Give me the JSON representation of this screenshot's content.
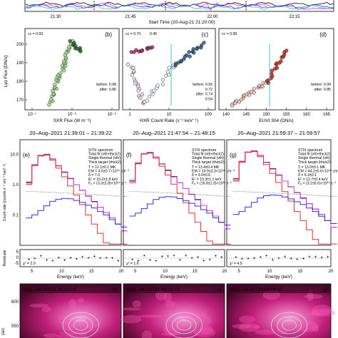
{
  "timeline": {
    "ticks": [
      "21:30",
      "21:45",
      "22:00",
      "22:15"
    ],
    "xlabel": "Start Time (20-Aug-21 21:20:00)"
  },
  "top_row": [
    {
      "id": "b",
      "cc": "cc = 0.93",
      "cc_color": "#2a8a2a",
      "xlabel": "SXR Flux (W m⁻²)",
      "xticks": [
        "10⁻⁷",
        "10⁻⁶",
        "10⁻⁵"
      ],
      "yticks": [
        "200",
        "190",
        "180",
        "170"
      ],
      "stats": [
        {
          "t": "before: 0.98",
          "c": "#2a8a2a"
        },
        {
          "t": "after: 0.86",
          "c": "#2a8a2a"
        }
      ]
    },
    {
      "id": "c",
      "cc": "cc = 0.70",
      "cc_color": "#3a6fb0",
      "cc2": "0.45",
      "cc2_color": "#b03aa0",
      "xlabel": "HXR Count Rate (s⁻¹ keV⁻¹)",
      "xticks": [
        "1",
        "10",
        "100"
      ],
      "stats": [
        {
          "t": "before: 0.92",
          "c": "#3a6fb0"
        },
        {
          "t": "0.72",
          "c": "#c03090"
        },
        {
          "t": "after: 0.74",
          "c": "#3a6fb0"
        },
        {
          "t": "0.54",
          "c": "#c03090"
        }
      ]
    },
    {
      "id": "d",
      "cc": "cc = 0.98",
      "cc_color": "#e03a3a",
      "xlabel": "EUVI 304 (DN/s)",
      "xticks": [
        "140",
        "145",
        "150",
        "155",
        "160",
        "165"
      ],
      "stats": [
        {
          "t": "before: 0.99",
          "c": "#e03a3a"
        },
        {
          "t": "after: 0.85",
          "c": "#e03a3a"
        }
      ]
    }
  ],
  "ylabel_top": "Lyα Flux (DN/s)",
  "spectra": [
    {
      "id": "e",
      "title": "20–Aug–2021 21:39:01 – 21:39:22",
      "chi": "χ² = 2.0",
      "fit": [
        "T = 12.1±0.1 MK",
        "EM = 4.5±0.7×10⁴⁶ cm⁻³",
        "δ = 7.0",
        "Eᶜ = 15.2±1.8 keV",
        "Fₑ = (3.3±2.8)×10³⁴ s⁻¹"
      ]
    },
    {
      "id": "f",
      "title": "20–Aug–2021 21:47:54 – 21:48:15",
      "chi": "χ² = 1.6",
      "fit": [
        "T = 13.4±0.4 MK",
        "EM = 19.9±3.3×10⁴⁶ cm⁻³",
        "δ = 9.0±0.6",
        "Eᶜ = 15.3±1.1 keV",
        "Fₑ = (16.8±1.9)×10³⁴ s⁻¹"
      ]
    },
    {
      "id": "g",
      "title": "20–Aug–2021 21:59:37 – 21:59:57",
      "chi": "χ² = 4.5",
      "fit": [
        "T = 13.0±0.1 MK",
        "EM = 44.2±0.6×10⁴⁶ cm⁻³",
        "δ = 6.3±0.1",
        "Eᶜ = 12.7±0.4 keV",
        "Fₑ = (3.2±6.6)×10³⁴ s⁻¹"
      ]
    }
  ],
  "legend": [
    {
      "t": "STIX spectrum",
      "c": "#000000"
    },
    {
      "t": "Total fit (vth+thick2)",
      "c": "#e040e0"
    },
    {
      "t": "Single thermal (vth)",
      "c": "#e03030"
    },
    {
      "t": "Thick target (thick2)",
      "c": "#3030e0"
    }
  ],
  "ylabel_spec": "Count rate (counts s⁻¹ cm⁻² keV⁻¹)",
  "xlabel_spec": "Energy (keV)",
  "yticks_spec": [
    "10.0",
    "1.0",
    "0.1"
  ],
  "xticks_spec": [
    "5",
    "10",
    "15",
    "20"
  ],
  "resid_label": "Residuals",
  "resid_ticks": [
    "5",
    "0",
    "-5"
  ],
  "images": [
    {
      "id": "h",
      "time": "2021–08–20T21:39:53 UT"
    },
    {
      "id": "i",
      "time": "2021–08–20T21:48:23 UT"
    },
    {
      "id": "j",
      "time": "2021–08–20T22:00:08 UT"
    }
  ],
  "image_yticks": [
    "600",
    "550"
  ],
  "image_ylabel": "(arc",
  "chart_data": {
    "type": "line",
    "spectra_shape": {
      "energy_keV": [
        4,
        5,
        6,
        7,
        8,
        9,
        10,
        11,
        12,
        13,
        14,
        15,
        16,
        17,
        18,
        19,
        20
      ],
      "series": [
        {
          "name": "STIX spectrum",
          "values": [
            1.2,
            4.5,
            9.0,
            10.0,
            7.0,
            4.2,
            2.6,
            1.6,
            1.0,
            0.65,
            0.42,
            0.28,
            0.18,
            0.12,
            0.08,
            0.05,
            0.03
          ]
        },
        {
          "name": "Total fit (vth+thick2)",
          "values": [
            1.1,
            4.4,
            9.2,
            9.8,
            7.1,
            4.1,
            2.5,
            1.55,
            1.0,
            0.64,
            0.41,
            0.27,
            0.18,
            0.12,
            0.08,
            0.05,
            0.03
          ]
        },
        {
          "name": "Single thermal (vth)",
          "values": [
            1.0,
            4.2,
            8.8,
            9.4,
            6.4,
            3.5,
            1.8,
            0.9,
            0.45,
            0.22,
            0.1,
            0.05,
            0.025,
            0.012,
            0.006,
            0.003,
            0.002
          ]
        },
        {
          "name": "Thick target (thick2)",
          "values": [
            0.08,
            0.1,
            0.14,
            0.2,
            0.28,
            0.33,
            0.35,
            0.34,
            0.3,
            0.26,
            0.21,
            0.17,
            0.13,
            0.1,
            0.07,
            0.05,
            0.04
          ]
        }
      ]
    }
  }
}
